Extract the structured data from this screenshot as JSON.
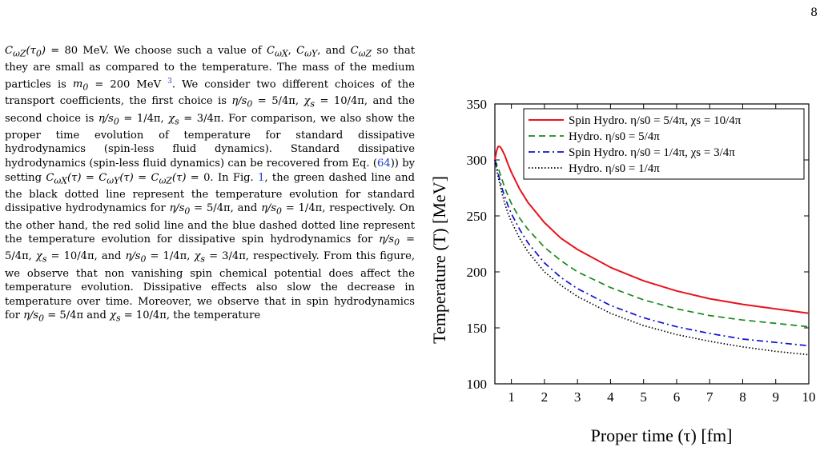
{
  "page_number": "8",
  "body_paragraph": "CωZ(τ0) = 80 MeV. We choose such a value of CωX, CωY, and CωZ so that they are small as compared to the temperature. The mass of the medium particles is m0 = 200 MeV 3. We consider two different choices of the transport coefficients, the first choice is η/s0 = 5/4π, χs = 10/4π, and the second choice is η/s0 = 1/4π, χs = 3/4π. For comparison, we also show the proper time evolution of temperature for standard dissipative hydrodynamics (spin-less fluid dynamics). Standard dissipative hydrodynamics (spin-less fluid dynamics) can be recovered from Eq. (64)) by setting CωX(τ) = CωY(τ) = CωZ(τ) = 0. In Fig. 1, the green dashed line and the black dotted line represent the temperature evolution for standard dissipative hydrodynamics for η/s0 = 5/4π, and η/s0 = 1/4π, respectively. On the other hand, the red solid line and the blue dashed dotted line represent the temperature evolution for dissipative spin hydrodynamics for η/s0 = 5/4π, χs = 10/4π, and η/s0 = 1/4π, χs = 3/4π, respectively. From this figure, we observe that non vanishing spin chemical potential does affect the temperature evolution. Dissipative effects also slow the decrease in temperature over time. Moreover, we observe that in spin hydrodynamics for η/s0 = 5/4π and χs = 10/4π, the temperature",
  "links": {
    "eq_ref": "64",
    "fig_ref": "1",
    "footnote": "3"
  },
  "chart_data": {
    "type": "line",
    "xlabel": "Proper time (τ) [fm]",
    "ylabel": "Temperature (T) [MeV]",
    "xlim": [
      0.5,
      10
    ],
    "ylim": [
      100,
      350
    ],
    "xticks": [
      1,
      2,
      3,
      4,
      5,
      6,
      7,
      8,
      9,
      10
    ],
    "yticks": [
      100,
      150,
      200,
      250,
      300,
      350
    ],
    "legend_position": "top-right",
    "grid": false,
    "series": [
      {
        "name": "Spin Hydro. η/s0 = 5/4π, χs = 10/4π",
        "color": "#e8141e",
        "dash": "solid",
        "x": [
          0.5,
          0.55,
          0.6,
          0.65,
          0.7,
          0.8,
          0.9,
          1.0,
          1.25,
          1.5,
          2,
          2.5,
          3,
          4,
          5,
          6,
          7,
          8,
          9,
          10
        ],
        "y": [
          300,
          308,
          312,
          312,
          310,
          304,
          296,
          289,
          274,
          262,
          244,
          230,
          220,
          204,
          192,
          183,
          176,
          171,
          167,
          163
        ]
      },
      {
        "name": "Hydro. η/s0 = 5/4π",
        "color": "#1a8a1a",
        "dash": "dashed",
        "x": [
          0.5,
          0.6,
          0.7,
          0.8,
          0.9,
          1.0,
          1.25,
          1.5,
          2,
          2.5,
          3,
          4,
          5,
          6,
          7,
          8,
          9,
          10
        ],
        "y": [
          300,
          293,
          284,
          275,
          268,
          261,
          248,
          238,
          222,
          210,
          200,
          186,
          175,
          167,
          161,
          157,
          154,
          151
        ]
      },
      {
        "name": "Spin Hydro. η/s0 = 1/4π, χs = 3/4π",
        "color": "#1010d0",
        "dash": "dashdot",
        "x": [
          0.5,
          0.6,
          0.7,
          0.8,
          0.9,
          1.0,
          1.25,
          1.5,
          2,
          2.5,
          3,
          4,
          5,
          6,
          7,
          8,
          9,
          10
        ],
        "y": [
          300,
          288,
          276,
          267,
          259,
          252,
          238,
          226,
          208,
          195,
          185,
          170,
          159,
          151,
          145,
          140,
          137,
          134
        ]
      },
      {
        "name": "Hydro. η/s0 = 1/4π",
        "color": "#000000",
        "dash": "dotted",
        "x": [
          0.5,
          0.6,
          0.7,
          0.8,
          0.9,
          1.0,
          1.25,
          1.5,
          2,
          2.5,
          3,
          4,
          5,
          6,
          7,
          8,
          9,
          10
        ],
        "y": [
          300,
          285,
          272,
          261,
          252,
          245,
          230,
          218,
          200,
          188,
          178,
          163,
          152,
          144,
          138,
          133,
          129,
          126
        ]
      }
    ]
  }
}
